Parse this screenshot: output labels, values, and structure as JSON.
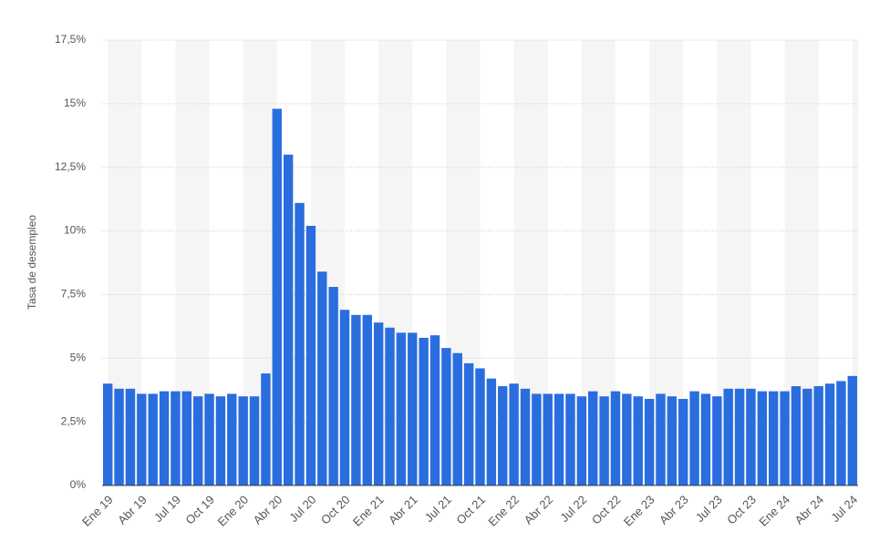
{
  "chart_data": {
    "type": "bar",
    "y_axis_label": "Tasa de desempleo",
    "color": "#2a6ddf",
    "categories": [
      "Ene 19",
      null,
      null,
      "Abr 19",
      null,
      null,
      "Jul 19",
      null,
      null,
      "Oct 19",
      null,
      null,
      "Ene 20",
      null,
      null,
      "Abr 20",
      null,
      null,
      "Jul 20",
      null,
      null,
      "Oct 20",
      null,
      null,
      "Ene 21",
      null,
      null,
      "Abr 21",
      null,
      null,
      "Jul 21",
      null,
      null,
      "Oct 21",
      null,
      null,
      "Ene 22",
      null,
      null,
      "Abr 22",
      null,
      null,
      "Jul 22",
      null,
      null,
      "Oct 22",
      null,
      null,
      "Ene 23",
      null,
      null,
      "Abr 23",
      null,
      null,
      "Jul 23",
      null,
      null,
      "Oct 23",
      null,
      null,
      "Ene 24",
      null,
      null,
      "Abr 24",
      null,
      null,
      "Jul 24"
    ],
    "values": [
      4.0,
      3.8,
      3.8,
      3.6,
      3.6,
      3.7,
      3.7,
      3.7,
      3.5,
      3.6,
      3.5,
      3.6,
      3.5,
      3.5,
      4.4,
      14.8,
      13.0,
      11.1,
      10.2,
      8.4,
      7.8,
      6.9,
      6.7,
      6.7,
      6.4,
      6.2,
      6.0,
      6.0,
      5.8,
      5.9,
      5.4,
      5.2,
      4.8,
      4.6,
      4.2,
      3.9,
      4.0,
      3.8,
      3.6,
      3.6,
      3.6,
      3.6,
      3.5,
      3.7,
      3.5,
      3.7,
      3.6,
      3.5,
      3.4,
      3.6,
      3.5,
      3.4,
      3.7,
      3.6,
      3.5,
      3.8,
      3.8,
      3.8,
      3.7,
      3.7,
      3.7,
      3.9,
      3.8,
      3.9,
      4.0,
      4.1,
      4.3
    ],
    "ylim": [
      0,
      17.5
    ],
    "yticks": [
      {
        "value": 0,
        "label": "0%"
      },
      {
        "value": 2.5,
        "label": "2,5%"
      },
      {
        "value": 5,
        "label": "5%"
      },
      {
        "value": 7.5,
        "label": "7,5%"
      },
      {
        "value": 10,
        "label": "10%"
      },
      {
        "value": 12.5,
        "label": "12,5%"
      },
      {
        "value": 15,
        "label": "15%"
      },
      {
        "value": 17.5,
        "label": "17,5%"
      }
    ],
    "grid": true
  }
}
